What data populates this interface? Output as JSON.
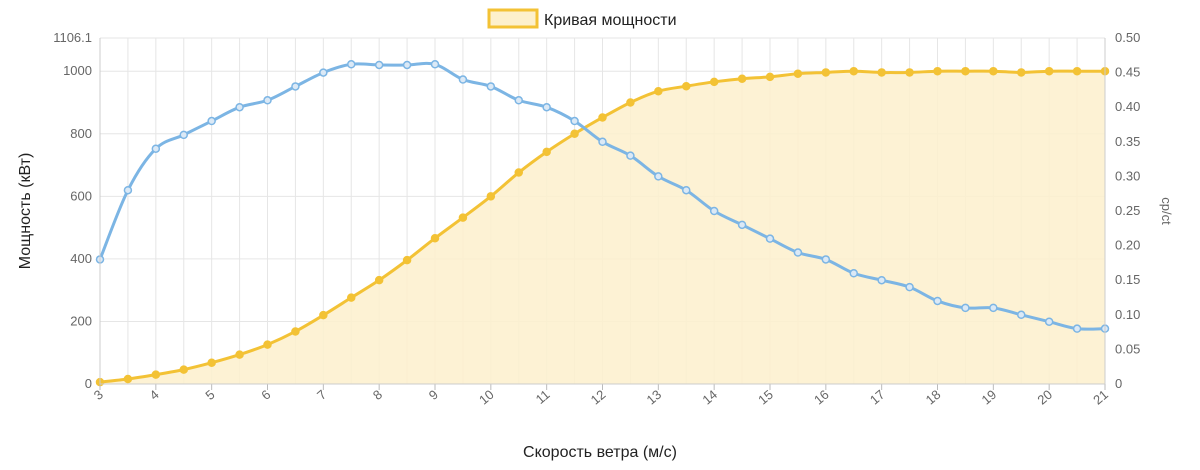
{
  "chart_data": {
    "type": "line",
    "xlabel": "Скорость ветра (м/с)",
    "ylabel": "Мощность (кВт)",
    "y2label": "cp/ct",
    "legend": {
      "position": "top-center",
      "entries": [
        "Кривая мощности"
      ]
    },
    "grid": true,
    "xlim": [
      3,
      21
    ],
    "ylim": [
      0,
      1106.1
    ],
    "y2lim": [
      0,
      0.5
    ],
    "x_ticks": [
      "3",
      "4",
      "5",
      "6",
      "7",
      "8",
      "9",
      "10",
      "11",
      "12",
      "13",
      "14",
      "15",
      "16",
      "17",
      "18",
      "19",
      "20",
      "21"
    ],
    "y_ticks": [
      "0",
      "200",
      "400",
      "600",
      "800",
      "1000",
      "1106.1"
    ],
    "y2_ticks": [
      "0",
      "0.05",
      "0.10",
      "0.15",
      "0.20",
      "0.25",
      "0.30",
      "0.35",
      "0.40",
      "0.45",
      "0.50"
    ],
    "x": [
      3,
      3.5,
      4,
      4.5,
      5,
      5.5,
      6,
      6.5,
      7,
      7.5,
      8,
      8.5,
      9,
      9.5,
      10,
      10.5,
      11,
      11.5,
      12,
      12.5,
      13,
      13.5,
      14,
      14.5,
      15,
      15.5,
      16,
      16.5,
      17,
      17.5,
      18,
      18.5,
      19,
      19.5,
      20,
      20.5,
      21
    ],
    "series": [
      {
        "name": "Кривая мощности",
        "axis": "left",
        "fill": true,
        "color": "#f3c235",
        "fill_color": "#fdf0cc",
        "values": [
          6,
          16,
          30,
          46,
          68,
          94,
          126,
          168,
          220,
          276,
          332,
          396,
          466,
          532,
          600,
          676,
          742,
          800,
          852,
          900,
          936,
          952,
          966,
          976,
          982,
          992,
          996,
          1000,
          996,
          996,
          1000,
          1000,
          1000,
          996,
          1000,
          1000,
          1000
        ]
      },
      {
        "name": "",
        "axis": "right",
        "fill": false,
        "color": "#7cb5e4",
        "values": [
          0.18,
          0.28,
          0.34,
          0.36,
          0.38,
          0.4,
          0.41,
          0.43,
          0.45,
          0.462,
          0.461,
          0.461,
          0.462,
          0.44,
          0.43,
          0.41,
          0.4,
          0.38,
          0.35,
          0.33,
          0.3,
          0.28,
          0.25,
          0.23,
          0.21,
          0.19,
          0.18,
          0.16,
          0.15,
          0.14,
          0.12,
          0.11,
          0.11,
          0.1,
          0.09,
          0.08,
          0.08
        ]
      }
    ]
  }
}
